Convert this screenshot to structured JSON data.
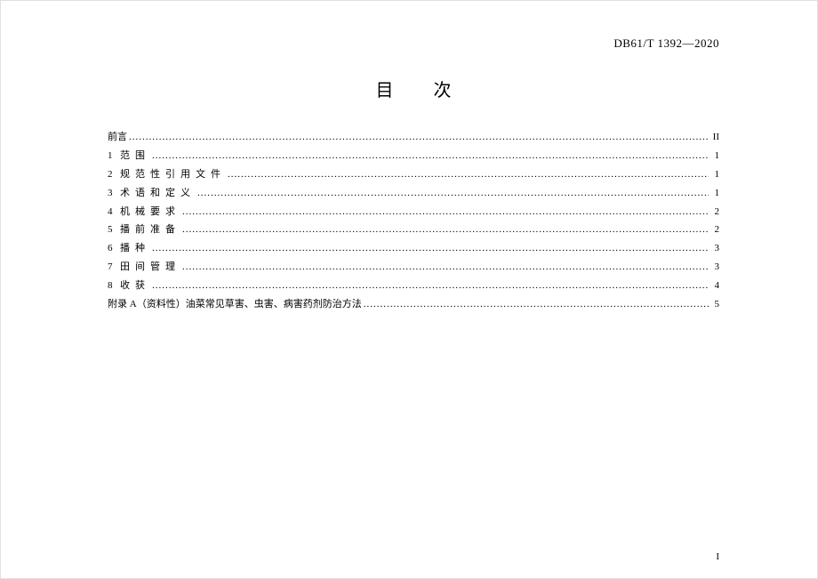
{
  "header": {
    "doc_number": "DB61/T 1392—2020"
  },
  "title": "目次",
  "toc": {
    "items": [
      {
        "num": "",
        "label": "前言",
        "spaced": false,
        "page": "II"
      },
      {
        "num": "1",
        "label": "范围",
        "spaced": true,
        "page": "1"
      },
      {
        "num": "2",
        "label": "规范性引用文件",
        "spaced": true,
        "page": "1"
      },
      {
        "num": "3",
        "label": "术语和定义",
        "spaced": true,
        "page": "1"
      },
      {
        "num": "4",
        "label": "机械要求",
        "spaced": true,
        "page": "2"
      },
      {
        "num": "5",
        "label": "播前准备",
        "spaced": true,
        "page": "2"
      },
      {
        "num": "6",
        "label": "播种",
        "spaced": true,
        "page": "3"
      },
      {
        "num": "7",
        "label": "田间管理",
        "spaced": true,
        "page": "3"
      },
      {
        "num": "8",
        "label": "收获",
        "spaced": true,
        "page": "4"
      },
      {
        "num": "",
        "label": "附录 A（资料性）油菜常见草害、虫害、病害药剂防治方法",
        "spaced": false,
        "page": "5"
      }
    ]
  },
  "page_number": "I",
  "colors": {
    "background": "#ffffff",
    "text": "#000000"
  },
  "typography": {
    "body_fontsize": 11,
    "title_fontsize": 20,
    "header_fontsize": 13,
    "line_height": 1.9
  }
}
